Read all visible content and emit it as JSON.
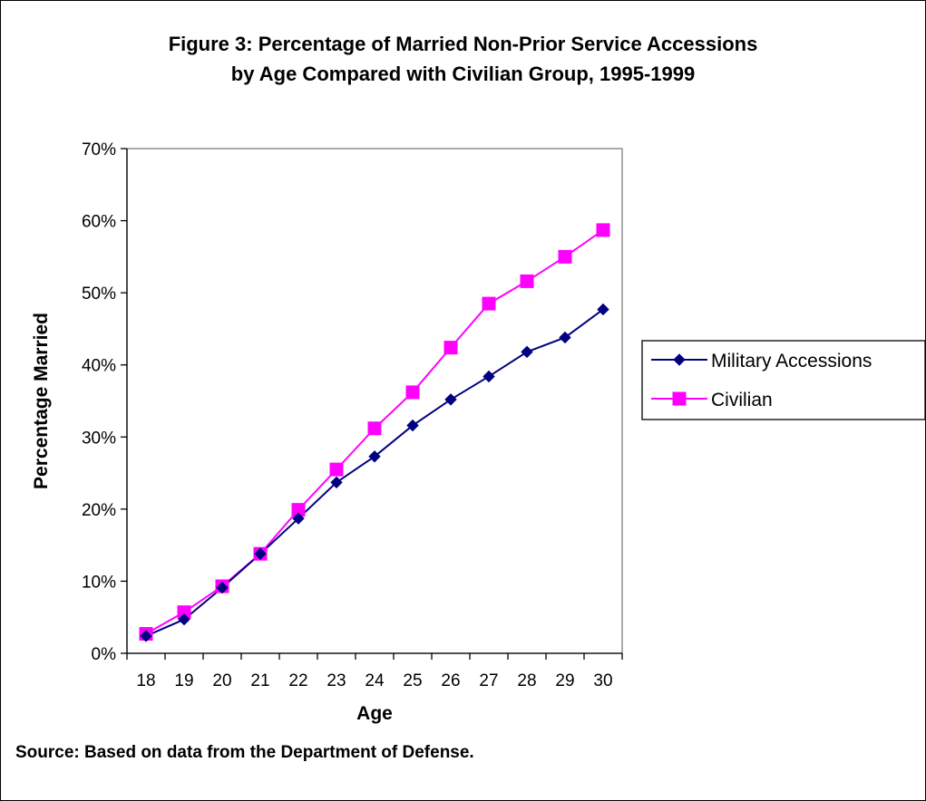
{
  "chart_data": {
    "type": "line",
    "title_lines": [
      "Figure 3: Percentage of Married Non-Prior Service Accessions",
      "by Age Compared with Civilian Group, 1995-1999"
    ],
    "xlabel": "Age",
    "ylabel": "Percentage Married",
    "categories": [
      "18",
      "19",
      "20",
      "21",
      "22",
      "23",
      "24",
      "25",
      "26",
      "27",
      "28",
      "29",
      "30"
    ],
    "y_ticks": [
      "0%",
      "10%",
      "20%",
      "30%",
      "40%",
      "50%",
      "60%",
      "70%"
    ],
    "ylim": [
      0,
      0.7
    ],
    "grid": false,
    "legend_position": "right",
    "series": [
      {
        "name": "Military Accessions",
        "color": "#000080",
        "marker": "diamond",
        "values": [
          0.024,
          0.047,
          0.091,
          0.138,
          0.187,
          0.237,
          0.273,
          0.316,
          0.352,
          0.384,
          0.418,
          0.438,
          0.477
        ]
      },
      {
        "name": "Civilian",
        "color": "#ff00ff",
        "marker": "square",
        "values": [
          0.027,
          0.057,
          0.093,
          0.138,
          0.199,
          0.255,
          0.312,
          0.362,
          0.424,
          0.485,
          0.516,
          0.55,
          0.587
        ]
      }
    ]
  },
  "source_note": "Source: Based on data from the Department of Defense."
}
